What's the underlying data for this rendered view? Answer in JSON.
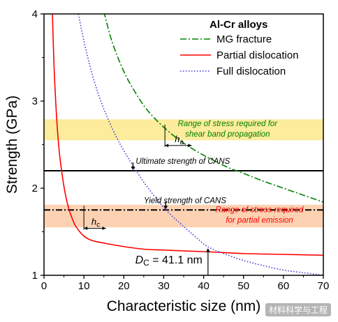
{
  "chart_data": {
    "type": "line",
    "xlabel": "Characteristic size (nm)",
    "ylabel": "Strength (GPa)",
    "xlim": [
      0,
      70
    ],
    "ylim": [
      1,
      4
    ],
    "xticks": [
      "0",
      "10",
      "20",
      "30",
      "40",
      "50",
      "60",
      "70"
    ],
    "yticks": [
      "1",
      "2",
      "3",
      "4"
    ],
    "legend": {
      "title": "Al-Cr alloys",
      "placement": "top-right"
    },
    "series": [
      {
        "name": "MG fracture",
        "color": "#008000",
        "style": "dash-dot",
        "x": [
          15,
          17,
          20,
          23,
          26,
          30,
          34,
          38,
          42,
          46,
          50,
          55,
          60,
          65,
          70
        ],
        "y": [
          4.03,
          3.69,
          3.34,
          3.09,
          2.89,
          2.7,
          2.55,
          2.43,
          2.33,
          2.24,
          2.17,
          2.08,
          2.0,
          1.92,
          1.84
        ]
      },
      {
        "name": "Partial dislocation",
        "color": "#ff0000",
        "style": "solid",
        "x": [
          2.1,
          2.5,
          3,
          3.5,
          4,
          5,
          6,
          7,
          8,
          10,
          12,
          15,
          20,
          25,
          30,
          35,
          41,
          50,
          60,
          70
        ],
        "y": [
          4.02,
          3.42,
          2.94,
          2.59,
          2.35,
          2.02,
          1.8,
          1.66,
          1.56,
          1.45,
          1.4,
          1.37,
          1.33,
          1.3,
          1.29,
          1.28,
          1.27,
          1.25,
          1.24,
          1.23
        ]
      },
      {
        "name": "Full dislocation",
        "color": "#3a3ad6",
        "style": "dotted",
        "x": [
          8.5,
          10,
          12,
          14,
          16,
          18,
          20,
          22,
          25,
          28,
          31,
          35,
          38,
          41,
          45,
          50,
          55,
          60,
          65,
          70
        ],
        "y": [
          4.03,
          3.69,
          3.32,
          3.03,
          2.8,
          2.6,
          2.43,
          2.28,
          2.07,
          1.89,
          1.73,
          1.56,
          1.44,
          1.33,
          1.25,
          1.17,
          1.11,
          1.06,
          1.03,
          1.0
        ]
      }
    ],
    "bands": [
      {
        "y0": 2.55,
        "y1": 2.79,
        "color": "#fbe98a",
        "label_lines": [
          "Range of stress required for",
          "shear band propagation"
        ],
        "label_color": "#008000",
        "label_x": 46
      },
      {
        "y0": 1.55,
        "y1": 1.81,
        "color": "#fbcaa6",
        "label_lines": [
          "Range of stress required",
          "for partial emission"
        ],
        "label_color": "#ff0000",
        "label_x": 54
      }
    ],
    "hlines": [
      {
        "y": 2.2,
        "style": "solid",
        "label": "Ultimate strength of CANS",
        "label_x": 23,
        "arrow_x": 22.3
      },
      {
        "y": 1.75,
        "style": "dash-dot",
        "label": "Yield strength of CANS",
        "label_x": 25,
        "arrow_x": 30.5
      }
    ],
    "markers": [
      {
        "label_main": "h",
        "label_sub": "a",
        "x0": 30.3,
        "x1": 37,
        "y": 2.49,
        "vline_top": 2.73,
        "vline_bottom": 2.49
      },
      {
        "label_main": "h",
        "label_sub": "c",
        "x0": 10.0,
        "x1": 15.5,
        "y": 1.54,
        "vline_top": 1.8,
        "vline_bottom": 1.54
      }
    ],
    "critical_size": {
      "label_main": "D",
      "label_sub": "C",
      "label_rest": " = 41.1 nm",
      "x": 41.1,
      "y": 1.32
    }
  },
  "watermark": "材料科学与工程"
}
